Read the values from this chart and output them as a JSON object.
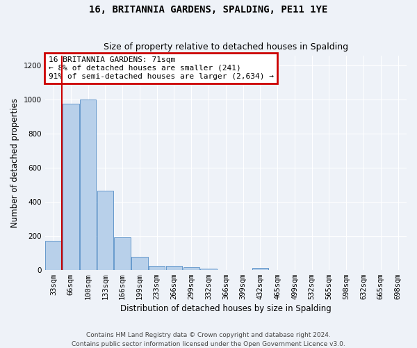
{
  "title": "16, BRITANNIA GARDENS, SPALDING, PE11 1YE",
  "subtitle": "Size of property relative to detached houses in Spalding",
  "xlabel": "Distribution of detached houses by size in Spalding",
  "ylabel": "Number of detached properties",
  "bar_labels": [
    "33sqm",
    "66sqm",
    "100sqm",
    "133sqm",
    "166sqm",
    "199sqm",
    "233sqm",
    "266sqm",
    "299sqm",
    "332sqm",
    "366sqm",
    "399sqm",
    "432sqm",
    "465sqm",
    "499sqm",
    "532sqm",
    "565sqm",
    "598sqm",
    "632sqm",
    "665sqm",
    "698sqm"
  ],
  "bar_values": [
    170,
    975,
    1000,
    465,
    190,
    75,
    25,
    22,
    15,
    5,
    0,
    0,
    12,
    0,
    0,
    0,
    0,
    0,
    0,
    0,
    0
  ],
  "bar_color": "#b8d0ea",
  "bar_edge_color": "#6699cc",
  "ylim": [
    0,
    1260
  ],
  "yticks": [
    0,
    200,
    400,
    600,
    800,
    1000,
    1200
  ],
  "vline_index": 1,
  "annotation_text": "16 BRITANNIA GARDENS: 71sqm\n← 8% of detached houses are smaller (241)\n91% of semi-detached houses are larger (2,634) →",
  "annotation_box_color": "#ffffff",
  "annotation_box_edge_color": "#cc0000",
  "vline_color": "#cc0000",
  "footer_text": "Contains HM Land Registry data © Crown copyright and database right 2024.\nContains public sector information licensed under the Open Government Licence v3.0.",
  "background_color": "#eef2f8",
  "grid_color": "#ffffff",
  "title_fontsize": 10,
  "subtitle_fontsize": 9,
  "axis_label_fontsize": 8.5,
  "tick_fontsize": 7.5,
  "annotation_fontsize": 8,
  "footer_fontsize": 6.5
}
